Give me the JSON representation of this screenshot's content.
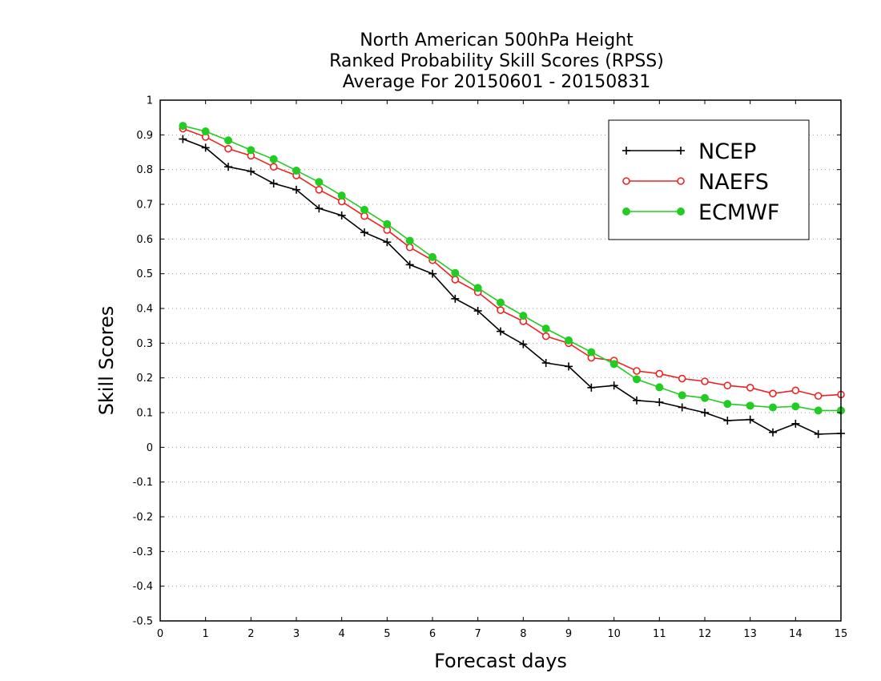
{
  "chart_data": {
    "type": "line",
    "title_lines": [
      "North American 500hPa Height",
      "Ranked Probability Skill Scores (RPSS)",
      "Average For 20150601 - 20150831"
    ],
    "xlabel": "Forecast days",
    "ylabel": "Skill Scores",
    "xlim": [
      0,
      15
    ],
    "ylim": [
      -0.5,
      1
    ],
    "xticks": [
      0,
      1,
      2,
      3,
      4,
      5,
      6,
      7,
      8,
      9,
      10,
      11,
      12,
      13,
      14,
      15
    ],
    "yticks": [
      -0.5,
      -0.4,
      -0.3,
      -0.2,
      -0.1,
      0,
      0.1,
      0.2,
      0.3,
      0.4,
      0.5,
      0.6,
      0.7,
      0.8,
      0.9,
      1
    ],
    "ytick_labels": [
      "-0.5",
      "-0.4",
      "-0.3",
      "-0.2",
      "-0.1",
      "0",
      "0.1",
      "0.2",
      "0.3",
      "0.4",
      "0.5",
      "0.6",
      "0.7",
      "0.8",
      "0.9",
      "1"
    ],
    "grid": "horizontal-dotted",
    "legend_position": "top-right",
    "x": [
      0.5,
      1,
      1.5,
      2,
      2.5,
      3,
      3.5,
      4,
      4.5,
      5,
      5.5,
      6,
      6.5,
      7,
      7.5,
      8,
      8.5,
      9,
      9.5,
      10,
      10.5,
      11,
      11.5,
      12,
      12.5,
      13,
      13.5,
      14,
      14.5,
      15
    ],
    "series": [
      {
        "name": "NCEP",
        "color": "#000000",
        "marker": "plus",
        "values": [
          0.888,
          0.863,
          0.808,
          0.795,
          0.76,
          0.742,
          0.688,
          0.668,
          0.619,
          0.591,
          0.526,
          0.5,
          0.428,
          0.393,
          0.334,
          0.297,
          0.243,
          0.233,
          0.172,
          0.178,
          0.135,
          0.13,
          0.115,
          0.1,
          0.077,
          0.08,
          0.043,
          0.068,
          0.038,
          0.04
        ]
      },
      {
        "name": "NAEFS",
        "color": "#ee2222",
        "marker": "open-circle",
        "values": [
          0.918,
          0.894,
          0.86,
          0.84,
          0.808,
          0.783,
          0.742,
          0.708,
          0.666,
          0.626,
          0.576,
          0.539,
          0.483,
          0.447,
          0.395,
          0.363,
          0.32,
          0.3,
          0.258,
          0.25,
          0.22,
          0.212,
          0.198,
          0.19,
          0.178,
          0.172,
          0.155,
          0.164,
          0.148,
          0.152
        ]
      },
      {
        "name": "ECMWF",
        "color": "#22cc22",
        "marker": "filled-circle",
        "values": [
          0.926,
          0.91,
          0.884,
          0.856,
          0.83,
          0.797,
          0.764,
          0.725,
          0.684,
          0.643,
          0.595,
          0.548,
          0.502,
          0.459,
          0.417,
          0.379,
          0.342,
          0.308,
          0.274,
          0.24,
          0.196,
          0.173,
          0.15,
          0.142,
          0.125,
          0.12,
          0.115,
          0.118,
          0.106,
          0.106
        ]
      }
    ]
  }
}
